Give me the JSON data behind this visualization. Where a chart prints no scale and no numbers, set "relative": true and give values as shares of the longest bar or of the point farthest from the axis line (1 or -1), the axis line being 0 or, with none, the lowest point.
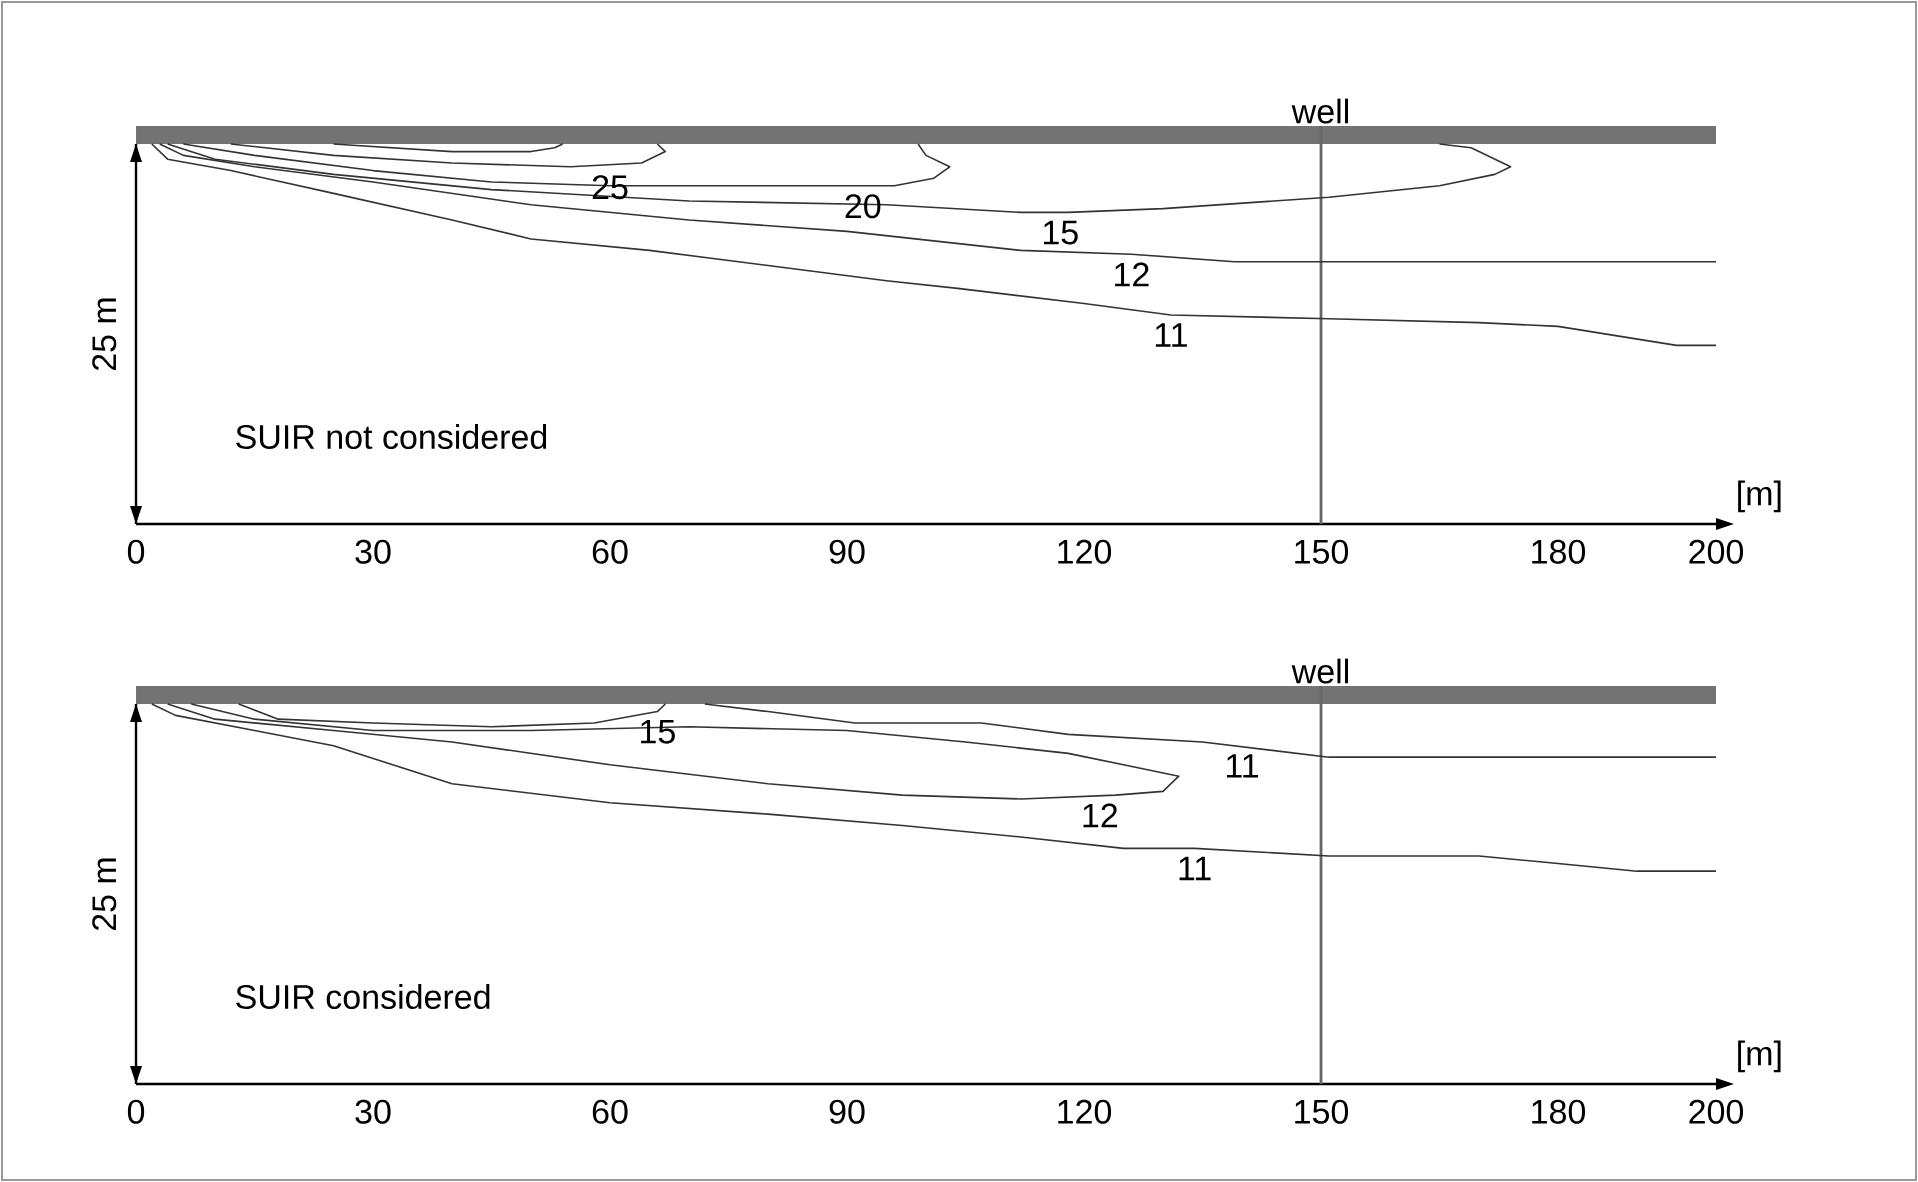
{
  "chart_data": [
    {
      "type": "line",
      "relative": true,
      "xlim": [
        0,
        200
      ],
      "xticks": [
        0,
        30,
        60,
        90,
        120,
        150,
        180,
        200
      ],
      "xlabel": "[m]",
      "ylabel": "25 m",
      "series": [
        {
          "color": "#333333",
          "x": [
            25,
            40,
            50,
            53,
            54
          ],
          "values": [
            1.0,
            0.98,
            0.98,
            0.99,
            1.0
          ]
        },
        {
          "color": "#333333",
          "x": [
            12,
            25,
            40,
            55,
            64,
            67,
            66
          ],
          "values": [
            1.0,
            0.97,
            0.95,
            0.94,
            0.95,
            0.98,
            1.0
          ]
        },
        {
          "color": "#333333",
          "x": [
            6,
            15,
            30,
            45,
            60,
            75,
            88,
            96,
            101,
            103,
            100,
            99
          ],
          "values": [
            1.0,
            0.97,
            0.93,
            0.9,
            0.89,
            0.89,
            0.89,
            0.89,
            0.91,
            0.94,
            0.97,
            1.0
          ]
        },
        {
          "color": "#333333",
          "x": [
            4,
            10,
            25,
            45,
            70,
            95,
            112,
            118,
            130,
            151,
            165,
            172,
            174,
            169,
            165
          ],
          "values": [
            1.0,
            0.96,
            0.92,
            0.88,
            0.85,
            0.84,
            0.82,
            0.82,
            0.83,
            0.86,
            0.89,
            0.92,
            0.94,
            0.99,
            1.0
          ]
        },
        {
          "color": "#333333",
          "x": [
            3,
            6,
            15,
            30,
            50,
            70,
            90,
            112,
            126,
            139,
            160,
            200
          ],
          "values": [
            1.0,
            0.97,
            0.94,
            0.9,
            0.84,
            0.8,
            0.77,
            0.72,
            0.71,
            0.69,
            0.69,
            0.69
          ]
        },
        {
          "color": "#333333",
          "x": [
            2,
            4,
            12,
            25,
            40,
            50,
            65,
            80,
            95,
            104,
            120,
            131,
            151,
            170,
            180,
            195,
            200
          ],
          "values": [
            1.0,
            0.96,
            0.93,
            0.87,
            0.8,
            0.75,
            0.72,
            0.68,
            0.64,
            0.62,
            0.58,
            0.55,
            0.54,
            0.53,
            0.52,
            0.47,
            0.47
          ]
        }
      ],
      "annotations": [
        "SUIR not considered",
        {
          "text": "25",
          "x": 60,
          "y": 0.94
        },
        {
          "text": "20",
          "x": 92,
          "y": 0.89
        },
        {
          "text": "15",
          "x": 117,
          "y": 0.82
        },
        {
          "text": "12",
          "x": 126,
          "y": 0.71
        },
        {
          "text": "11",
          "x": 131,
          "y": 0.55
        }
      ],
      "ref_lines": [
        {
          "axis": "x",
          "value": 150,
          "label": "well",
          "color": "#666666"
        }
      ]
    },
    {
      "type": "line",
      "relative": true,
      "xlim": [
        0,
        200
      ],
      "xticks": [
        0,
        30,
        60,
        90,
        120,
        150,
        180,
        200
      ],
      "xlabel": "[m]",
      "ylabel": "25 m",
      "series": [
        {
          "color": "#333333",
          "x": [
            13,
            18,
            30,
            45,
            58,
            66,
            67
          ],
          "values": [
            1.0,
            0.96,
            0.95,
            0.94,
            0.95,
            0.98,
            1.0
          ]
        },
        {
          "color": "#333333",
          "x": [
            72,
            80,
            91,
            107,
            118,
            135,
            151,
            175,
            200
          ],
          "values": [
            1.0,
            0.98,
            0.95,
            0.95,
            0.92,
            0.9,
            0.86,
            0.86,
            0.86
          ]
        },
        {
          "color": "#333333",
          "x": [
            4,
            10,
            25,
            40,
            60,
            80,
            97,
            112,
            124,
            130,
            132,
            125,
            118,
            105,
            90,
            70,
            50,
            30,
            15,
            7
          ],
          "values": [
            1.0,
            0.96,
            0.93,
            0.9,
            0.84,
            0.79,
            0.76,
            0.75,
            0.76,
            0.77,
            0.81,
            0.84,
            0.87,
            0.9,
            0.93,
            0.94,
            0.93,
            0.93,
            0.96,
            1.0
          ]
        },
        {
          "color": "#333333",
          "x": [
            2,
            5,
            15,
            25,
            40,
            60,
            80,
            97,
            112,
            125,
            134,
            151,
            170,
            180,
            190,
            200
          ],
          "values": [
            1.0,
            0.97,
            0.93,
            0.89,
            0.79,
            0.74,
            0.71,
            0.68,
            0.65,
            0.62,
            0.62,
            0.6,
            0.6,
            0.58,
            0.56,
            0.56
          ]
        }
      ],
      "annotations": [
        "SUIR considered",
        {
          "text": "15",
          "x": 66,
          "y": 0.98
        },
        {
          "text": "11",
          "x": 140,
          "y": 0.89
        },
        {
          "text": "12",
          "x": 122,
          "y": 0.76
        },
        {
          "text": "11",
          "x": 134,
          "y": 0.62
        }
      ],
      "ref_lines": [
        {
          "axis": "x",
          "value": 150,
          "label": "well",
          "color": "#666666"
        }
      ]
    }
  ]
}
